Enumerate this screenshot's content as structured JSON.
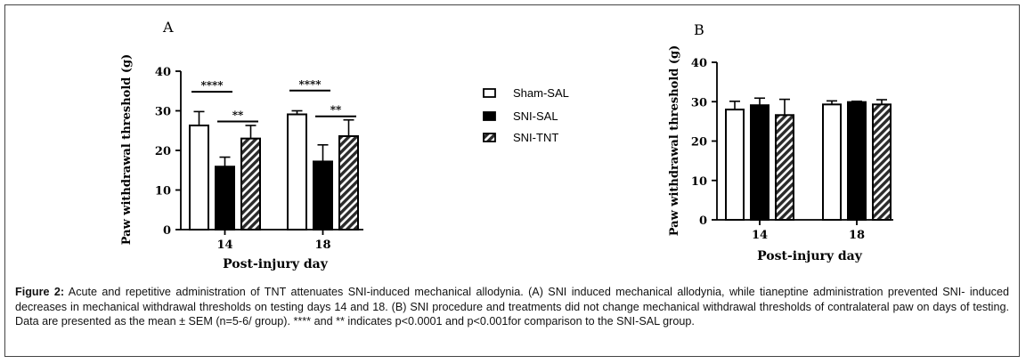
{
  "legend": {
    "items": [
      {
        "label": "Sham-SAL",
        "fill": "white"
      },
      {
        "label": "SNI-SAL",
        "fill": "black"
      },
      {
        "label": "SNI-TNT",
        "fill": "hatch"
      }
    ]
  },
  "caption": {
    "label": "Figure 2:",
    "text": " Acute and repetitive administration of TNT attenuates SNI-induced mechanical allodynia. (A) SNI induced mechanical allodynia, while tianeptine administration prevented SNI- induced decreases in mechanical withdrawal thresholds on testing days 14 and 18. (B) SNI procedure and treatments did not change mechanical withdrawal thresholds of contralateral paw on days of testing. Data are presented as the mean ± SEM (n=5-6/ group). **** and ** indicates p<0.0001 and p<0.001for comparison to the SNI-SAL group."
  },
  "chart_data": [
    {
      "type": "bar",
      "panel_label": "A",
      "categories": [
        "14",
        "18"
      ],
      "series": [
        {
          "name": "Sham-SAL",
          "values": [
            26.3,
            29.1
          ],
          "sem": [
            3.5,
            0.9
          ]
        },
        {
          "name": "SNI-SAL",
          "values": [
            15.9,
            17.2
          ],
          "sem": [
            2.4,
            4.2
          ]
        },
        {
          "name": "SNI-TNT",
          "values": [
            23.0,
            23.6
          ],
          "sem": [
            3.3,
            4.1
          ]
        }
      ],
      "xlabel": "Post-injury day",
      "ylabel": "Paw withdrawal threshold (g)",
      "ylim": [
        0,
        40
      ],
      "yticks": [
        0,
        10,
        20,
        30,
        40
      ],
      "annotations": [
        {
          "text": "****",
          "category": "14",
          "from": "Sham-SAL",
          "to": "SNI-SAL",
          "y": 34.8
        },
        {
          "text": "**",
          "category": "14",
          "from": "SNI-SAL",
          "to": "SNI-TNT",
          "y": 27.3
        },
        {
          "text": "****",
          "category": "18",
          "from": "Sham-SAL",
          "to": "SNI-SAL",
          "y": 35.1
        },
        {
          "text": "**",
          "category": "18",
          "from": "SNI-SAL",
          "to": "SNI-TNT",
          "y": 28.6
        }
      ]
    },
    {
      "type": "bar",
      "panel_label": "B",
      "categories": [
        "14",
        "18"
      ],
      "series": [
        {
          "name": "Sham-SAL",
          "values": [
            28.0,
            29.3
          ],
          "sem": [
            2.1,
            0.9
          ]
        },
        {
          "name": "SNI-SAL",
          "values": [
            29.1,
            29.9
          ],
          "sem": [
            1.8,
            0.2
          ]
        },
        {
          "name": "SNI-TNT",
          "values": [
            26.6,
            29.3
          ],
          "sem": [
            4.0,
            1.2
          ]
        }
      ],
      "xlabel": "Post-injury day",
      "ylabel": "Paw withdrawal threshold (g)",
      "ylim": [
        0,
        40
      ],
      "yticks": [
        0,
        10,
        20,
        30,
        40
      ],
      "annotations": []
    }
  ]
}
